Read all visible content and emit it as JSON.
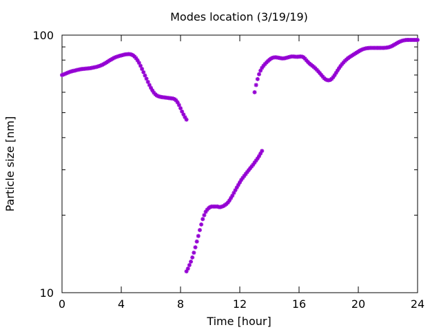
{
  "chart_data": {
    "type": "scatter",
    "title": "Modes location (3/19/19)",
    "xlabel": "Time [hour]",
    "ylabel": "Particle size [nm]",
    "xlim": [
      0,
      24
    ],
    "ylim": [
      10,
      100
    ],
    "yscale": "log",
    "grid": false,
    "legend": "none",
    "xticks": [
      0,
      4,
      8,
      12,
      16,
      20,
      24
    ],
    "xtick_labels": [
      "0",
      "4",
      "8",
      "12",
      "16",
      "20",
      "24"
    ],
    "yticks": [
      10,
      100
    ],
    "ytick_labels": [
      "10",
      "100"
    ],
    "marker_color": "#9400d3",
    "series": [
      {
        "x": [
          0.0,
          0.1,
          0.2,
          0.3,
          0.4,
          0.5,
          0.6,
          0.7,
          0.8,
          0.9,
          1.0,
          1.1,
          1.2,
          1.3,
          1.4,
          1.5,
          1.6,
          1.7,
          1.8,
          1.9,
          2.0,
          2.1,
          2.2,
          2.3,
          2.4,
          2.5,
          2.6,
          2.7,
          2.8,
          2.9,
          3.0,
          3.1,
          3.2,
          3.3,
          3.4,
          3.5,
          3.6,
          3.7,
          3.8,
          3.9,
          4.0,
          4.1,
          4.2,
          4.3,
          4.4,
          4.5,
          4.6,
          4.7,
          4.8,
          4.9,
          5.0,
          5.1,
          5.2,
          5.3,
          5.4,
          5.5,
          5.6,
          5.7,
          5.8,
          5.9,
          6.0,
          6.1,
          6.2,
          6.3,
          6.4,
          6.5,
          6.6,
          6.7,
          6.8,
          6.9,
          7.0,
          7.1,
          7.2,
          7.3,
          7.4,
          7.5,
          7.6,
          7.7,
          7.8,
          7.9,
          8.0,
          8.1,
          8.2,
          8.3,
          8.4
        ],
        "y": [
          70.0,
          70.3,
          70.7,
          71.1,
          71.5,
          71.9,
          72.2,
          72.5,
          72.7,
          72.9,
          73.2,
          73.4,
          73.6,
          73.8,
          73.9,
          74.0,
          74.1,
          74.2,
          74.3,
          74.4,
          74.6,
          74.8,
          75.0,
          75.2,
          75.5,
          75.8,
          76.2,
          76.6,
          77.1,
          77.7,
          78.3,
          79.0,
          79.7,
          80.3,
          80.9,
          81.5,
          82.0,
          82.4,
          82.8,
          83.1,
          83.4,
          83.7,
          84.0,
          84.2,
          84.3,
          84.4,
          84.3,
          84.0,
          83.4,
          82.5,
          81.3,
          79.8,
          78.0,
          76.0,
          73.9,
          71.8,
          69.7,
          67.7,
          65.8,
          64.0,
          62.4,
          61.0,
          59.8,
          58.9,
          58.3,
          57.9,
          57.7,
          57.5,
          57.4,
          57.3,
          57.2,
          57.1,
          57.0,
          56.9,
          56.8,
          56.7,
          56.4,
          55.8,
          54.8,
          53.5,
          52.0,
          50.5,
          49.2,
          48.0,
          47.0
        ]
      },
      {
        "x": [
          8.4,
          8.5,
          8.6,
          8.7,
          8.8,
          8.9,
          9.0,
          9.1,
          9.2,
          9.3,
          9.4,
          9.5,
          9.6,
          9.7,
          9.8,
          9.9,
          10.0,
          10.1,
          10.2,
          10.3,
          10.4,
          10.5,
          10.6,
          10.7,
          10.8,
          10.9,
          11.0,
          11.1,
          11.2,
          11.3,
          11.4,
          11.5,
          11.6,
          11.7,
          11.8,
          11.9,
          12.0,
          12.1,
          12.2,
          12.3,
          12.4,
          12.5,
          12.6,
          12.7,
          12.8,
          12.9,
          13.0,
          13.1,
          13.2,
          13.3,
          13.4,
          13.5
        ],
        "y": [
          12.1,
          12.4,
          12.8,
          13.2,
          13.7,
          14.3,
          15.0,
          15.8,
          16.6,
          17.5,
          18.4,
          19.3,
          20.0,
          20.6,
          21.0,
          21.3,
          21.5,
          21.6,
          21.6,
          21.6,
          21.6,
          21.6,
          21.5,
          21.5,
          21.6,
          21.7,
          21.9,
          22.1,
          22.4,
          22.8,
          23.3,
          23.8,
          24.4,
          25.0,
          25.6,
          26.2,
          26.8,
          27.4,
          27.9,
          28.4,
          28.9,
          29.4,
          29.9,
          30.4,
          30.9,
          31.4,
          32.0,
          32.6,
          33.2,
          33.9,
          34.7,
          35.5
        ]
      },
      {
        "x": [
          13.0,
          13.1,
          13.2,
          13.3,
          13.4,
          13.5,
          13.6,
          13.7,
          13.8,
          13.9,
          14.0,
          14.1,
          14.2,
          14.3,
          14.4,
          14.5,
          14.6,
          14.7,
          14.8,
          14.9,
          15.0,
          15.1,
          15.2,
          15.3,
          15.4,
          15.5,
          15.6,
          15.7,
          15.8,
          15.9,
          16.0,
          16.1,
          16.2,
          16.3,
          16.4,
          16.5,
          16.6,
          16.7,
          16.8,
          16.9,
          17.0,
          17.1,
          17.2,
          17.3,
          17.4,
          17.5,
          17.6,
          17.7,
          17.8,
          17.9,
          18.0,
          18.1,
          18.2,
          18.3,
          18.4,
          18.5,
          18.6,
          18.7,
          18.8,
          18.9,
          19.0,
          19.1,
          19.2,
          19.3,
          19.4,
          19.5,
          19.6,
          19.7,
          19.8,
          19.9,
          20.0,
          20.1,
          20.2,
          20.3,
          20.4,
          20.5,
          20.6,
          20.7,
          20.8,
          20.9,
          21.0,
          21.1,
          21.2,
          21.3,
          21.4,
          21.5,
          21.6,
          21.7,
          21.8,
          21.9,
          22.0,
          22.1,
          22.2,
          22.3,
          22.4,
          22.5,
          22.6,
          22.7,
          22.8,
          22.9,
          23.0,
          23.1,
          23.2,
          23.3,
          23.4,
          23.5,
          23.6,
          23.7,
          23.8,
          23.9,
          24.0
        ],
        "y": [
          60.0,
          64.0,
          67.5,
          70.5,
          72.8,
          74.6,
          76.0,
          77.2,
          78.3,
          79.3,
          80.2,
          81.0,
          81.6,
          81.9,
          82.0,
          81.9,
          81.7,
          81.5,
          81.3,
          81.2,
          81.3,
          81.5,
          81.8,
          82.1,
          82.4,
          82.6,
          82.6,
          82.5,
          82.4,
          82.4,
          82.5,
          82.6,
          82.5,
          82.0,
          81.0,
          79.8,
          78.6,
          77.6,
          76.8,
          76.0,
          75.2,
          74.3,
          73.3,
          72.3,
          71.2,
          70.1,
          69.0,
          68.0,
          67.3,
          66.9,
          66.8,
          67.0,
          67.6,
          68.6,
          69.9,
          71.4,
          72.9,
          74.4,
          75.8,
          77.1,
          78.3,
          79.4,
          80.4,
          81.3,
          82.1,
          82.8,
          83.5,
          84.2,
          84.9,
          85.6,
          86.3,
          87.0,
          87.6,
          88.1,
          88.5,
          88.8,
          89.0,
          89.1,
          89.2,
          89.2,
          89.2,
          89.2,
          89.2,
          89.2,
          89.2,
          89.2,
          89.2,
          89.2,
          89.3,
          89.4,
          89.6,
          89.9,
          90.3,
          90.9,
          91.6,
          92.3,
          93.0,
          93.7,
          94.3,
          94.8,
          95.2,
          95.5,
          95.7,
          95.8,
          95.8,
          95.8,
          95.8,
          95.8,
          95.8,
          95.8,
          95.8
        ]
      }
    ]
  }
}
